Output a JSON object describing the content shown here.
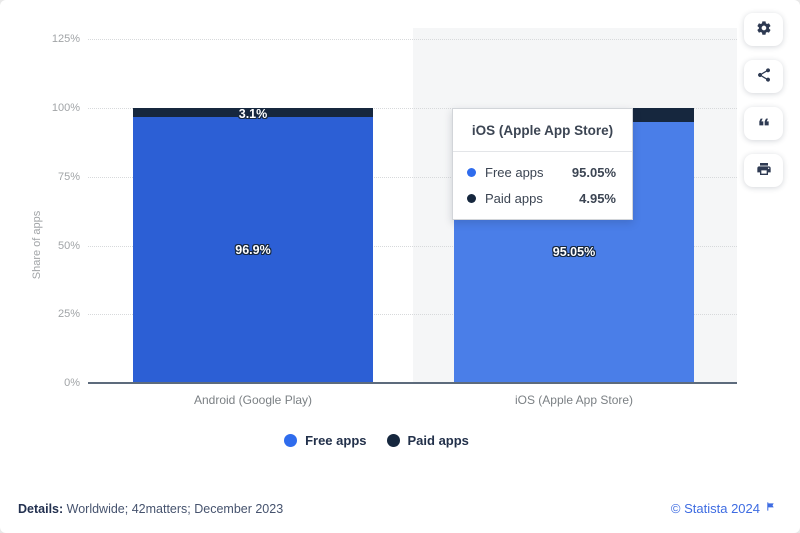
{
  "chart_data": {
    "type": "bar",
    "stacked": true,
    "ylabel": "Share of apps",
    "yticks": [
      "0%",
      "25%",
      "50%",
      "75%",
      "100%",
      "125%"
    ],
    "ylim": [
      0,
      137.5
    ],
    "grid": "horizontal-dotted",
    "legend_position": "bottom-center",
    "categories": [
      "Android (Google Play)",
      "iOS (Apple App Store)"
    ],
    "series": [
      {
        "name": "Free apps",
        "color": "#2c5fd5",
        "hover_color": "#4a7ee8",
        "values": [
          96.9,
          95.05
        ]
      },
      {
        "name": "Paid apps",
        "color": "#16273e",
        "values": [
          3.1,
          4.95
        ]
      }
    ],
    "bars": [
      {
        "category": "Android (Google Play)",
        "free": 96.9,
        "paid": 3.1,
        "free_label": "96.9%",
        "paid_label": "3.1%",
        "hovered": false
      },
      {
        "category": "iOS (Apple App Store)",
        "free": 95.05,
        "paid": 4.95,
        "free_label": "95.05%",
        "paid_label": "",
        "hovered": true
      }
    ]
  },
  "tooltip": {
    "title": "iOS (Apple App Store)",
    "rows": [
      {
        "label": "Free apps",
        "value": "95.05%",
        "dot_color": "#2f6ced"
      },
      {
        "label": "Paid apps",
        "value": "4.95%",
        "dot_color": "#16273e"
      }
    ]
  },
  "legend": {
    "items": [
      {
        "label": "Free apps",
        "dot_color": "#2f6ced"
      },
      {
        "label": "Paid apps",
        "dot_color": "#16273e"
      }
    ]
  },
  "toolbar": {
    "buttons": [
      {
        "name": "settings",
        "icon": "gear-icon"
      },
      {
        "name": "share",
        "icon": "share-icon"
      },
      {
        "name": "cite",
        "icon": "quote-icon"
      },
      {
        "name": "print",
        "icon": "printer-icon"
      }
    ]
  },
  "footer": {
    "details_label": "Details:",
    "details_text": " Worldwide; 42matters; December 2023",
    "copyright": "© Statista 2024"
  },
  "colors": {
    "free_bar": "#2c5fd5",
    "free_bar_hover": "#4a7ee8",
    "paid_bar": "#16273e",
    "hover_band": "#f5f6f7",
    "accent_blue": "#3e6ce2"
  }
}
